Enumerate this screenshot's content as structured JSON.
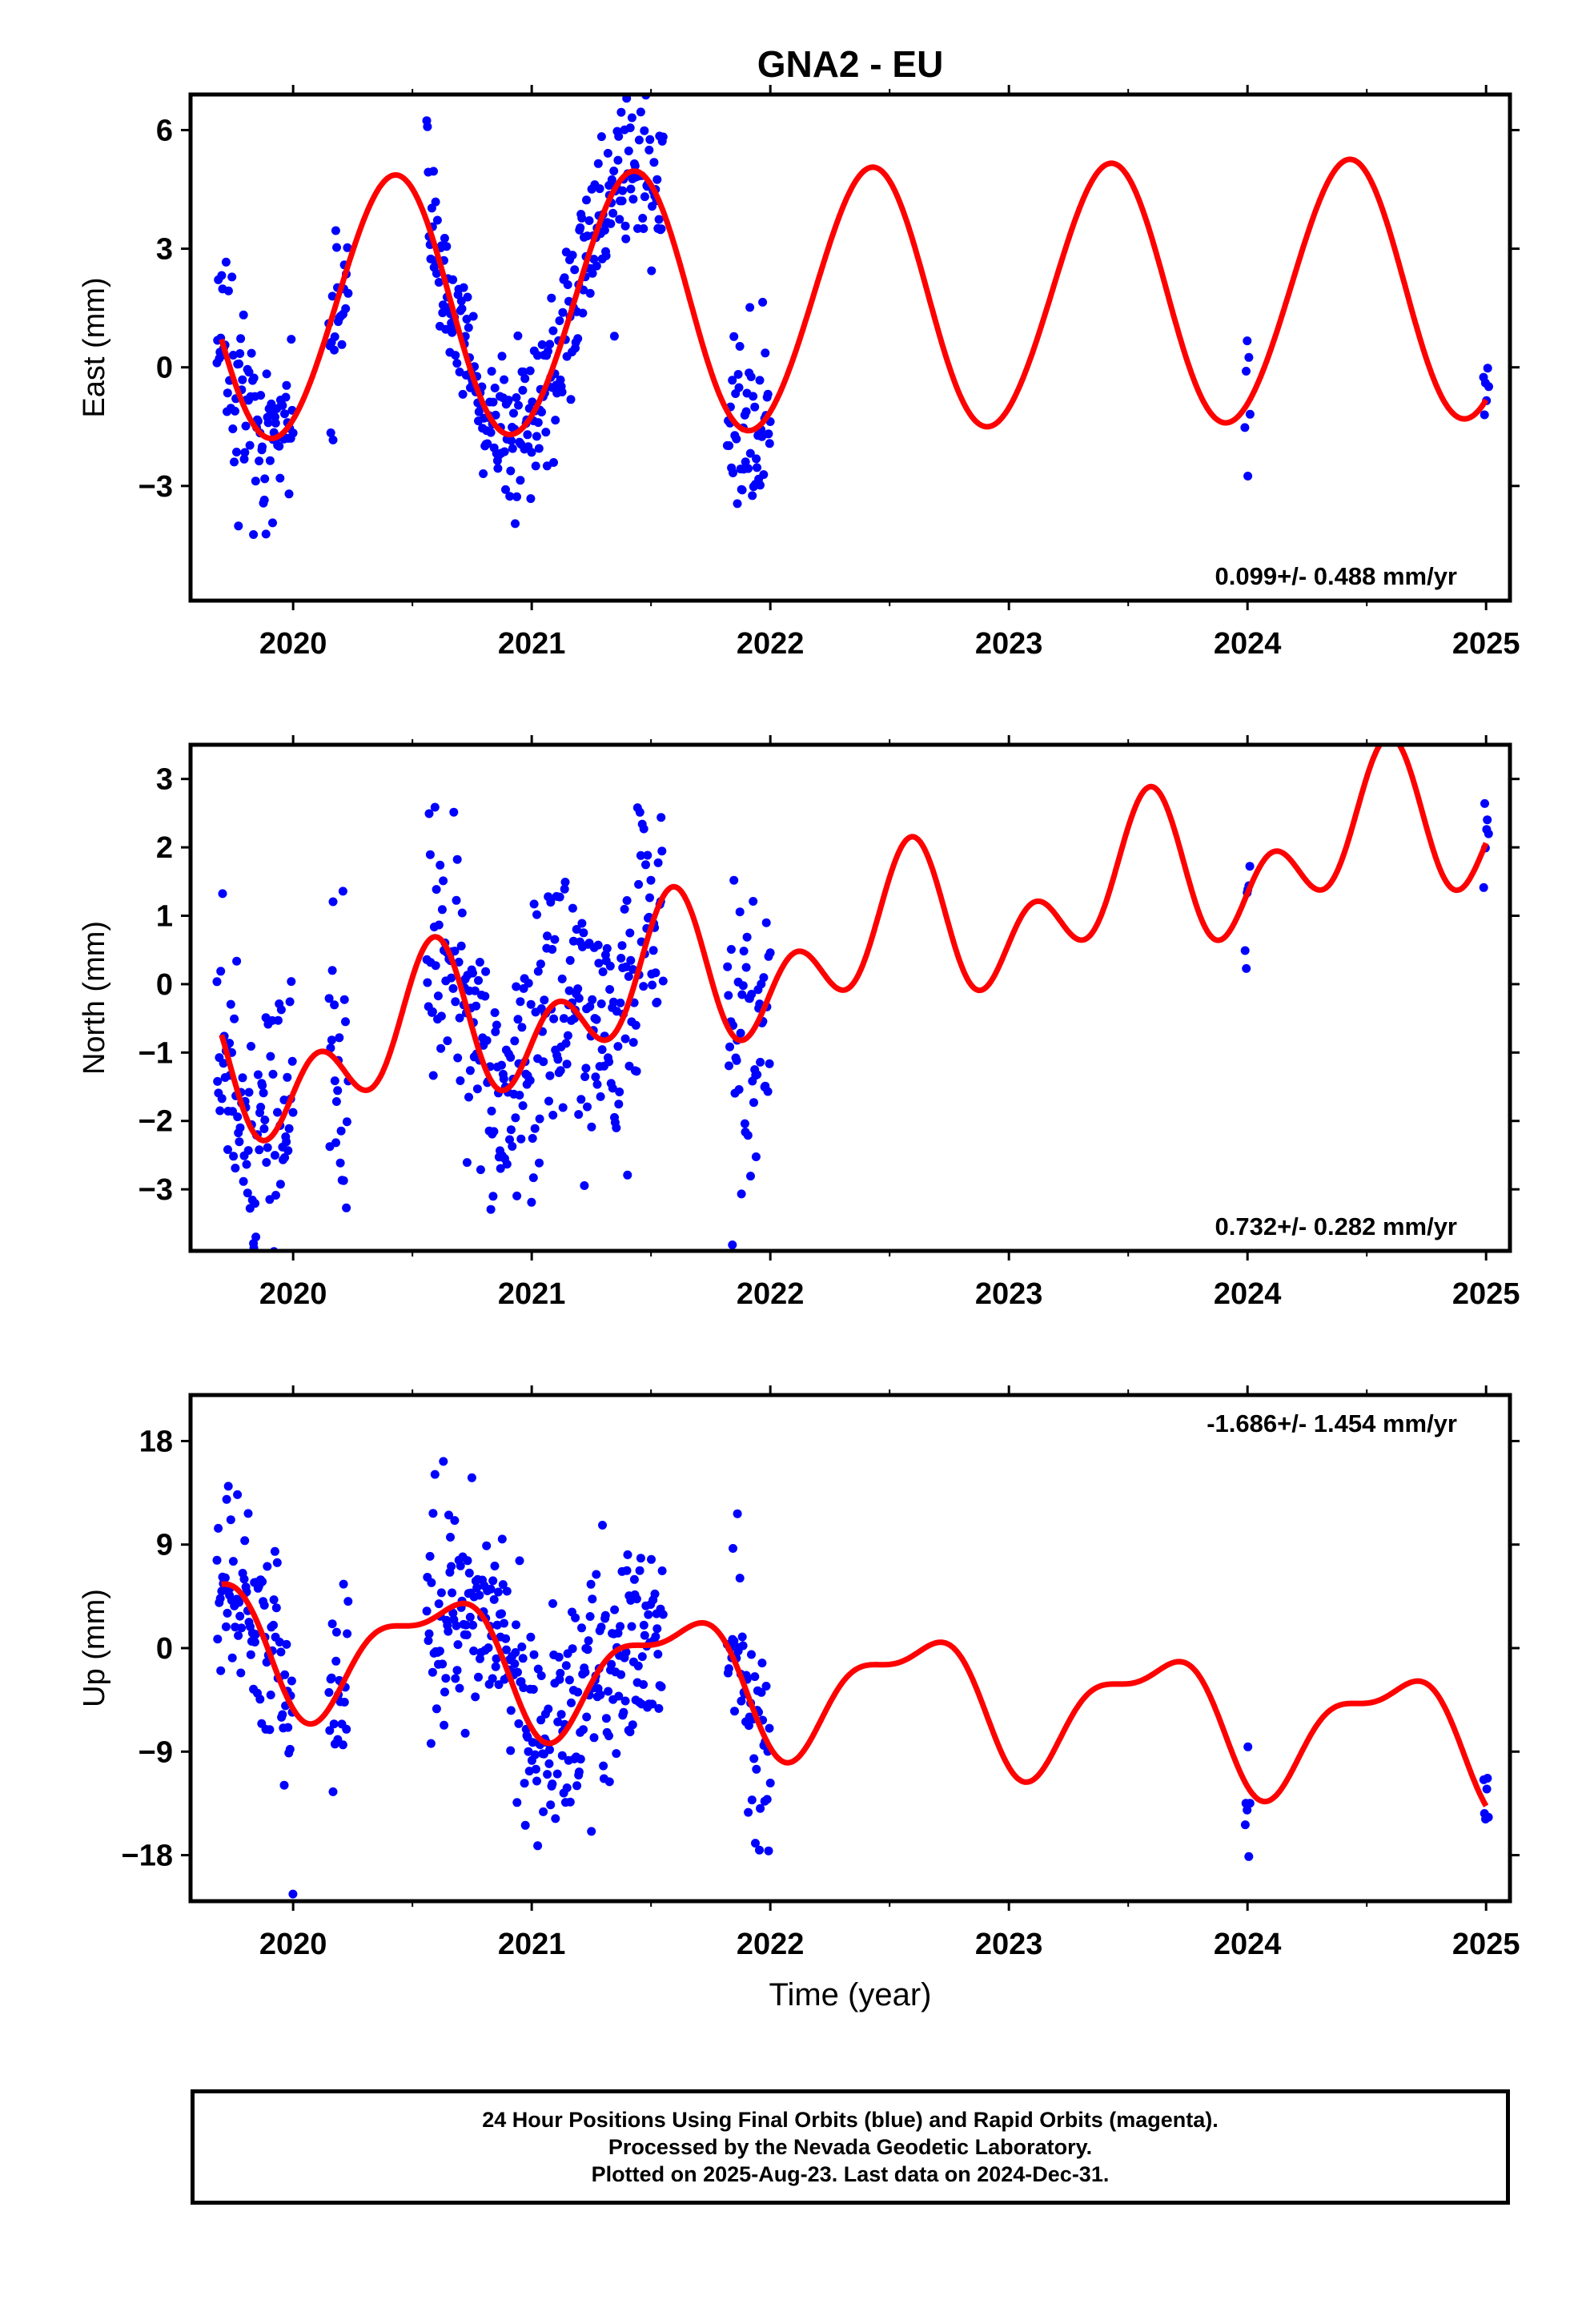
{
  "title": "GNA2 - EU",
  "colors": {
    "data_points": "#0000ff",
    "model_curve": "#ff0000",
    "axes": "#000000"
  },
  "chart_data": [
    {
      "type": "scatter",
      "panel": "east",
      "ylabel": "East (mm)",
      "xlabel": "",
      "xlim": [
        2019.57,
        2025.1
      ],
      "ylim": [
        -5.9,
        6.9
      ],
      "xticks": [
        2020,
        2021,
        2022,
        2023,
        2024,
        2025
      ],
      "yticks": [
        -3,
        0,
        3,
        6
      ],
      "ytick_labels": [
        "−3",
        "0",
        "3",
        "6"
      ],
      "rate_label": "0.099+/- 0.488 mm/yr",
      "rate_position": "bottom-right",
      "model": {
        "mean": 1.65,
        "amp1": 3.3,
        "peak": 0.42,
        "amp2": 0.12,
        "phase2": 0.0,
        "trend": 0.099,
        "t0": 2022.0
      },
      "segments": [
        {
          "start": 2019.68,
          "end": 2020.0,
          "scatter": 1.1
        },
        {
          "start": 2020.15,
          "end": 2020.23,
          "scatter": 1.0
        },
        {
          "start": 2020.56,
          "end": 2021.55,
          "scatter": 1.0
        },
        {
          "start": 2021.82,
          "end": 2022.0,
          "scatter": 1.2
        },
        {
          "start": 2023.99,
          "end": 2024.01,
          "scatter": 1.2
        },
        {
          "start": 2024.99,
          "end": 2025.01,
          "scatter": 0.5
        }
      ]
    },
    {
      "type": "scatter",
      "panel": "north",
      "ylabel": "North (mm)",
      "xlabel": "",
      "xlim": [
        2019.57,
        2025.1
      ],
      "ylim": [
        -3.9,
        3.5
      ],
      "xticks": [
        2020,
        2021,
        2022,
        2023,
        2024,
        2025
      ],
      "yticks": [
        -3,
        -2,
        -1,
        0,
        1,
        2,
        3
      ],
      "ytick_labels": [
        "−3",
        "−2",
        "−1",
        "0",
        "1",
        "2",
        "3"
      ],
      "rate_label": "0.732+/- 0.282 mm/yr",
      "rate_position": "bottom-right",
      "model": {
        "mean": 0.3,
        "amp1": 0.7,
        "peak": 0.55,
        "amp2": 0.75,
        "phase2": 0.1,
        "trend": 0.732,
        "t0": 2022.0
      },
      "segments": [
        {
          "start": 2019.68,
          "end": 2020.0,
          "scatter": 0.9
        },
        {
          "start": 2020.15,
          "end": 2020.23,
          "scatter": 1.0
        },
        {
          "start": 2020.56,
          "end": 2021.55,
          "scatter": 1.0
        },
        {
          "start": 2021.82,
          "end": 2022.0,
          "scatter": 1.0
        },
        {
          "start": 2023.99,
          "end": 2024.01,
          "scatter": 1.0
        },
        {
          "start": 2024.99,
          "end": 2025.01,
          "scatter": 0.4
        }
      ]
    },
    {
      "type": "scatter",
      "panel": "up",
      "ylabel": "Up (mm)",
      "xlabel": "Time (year)",
      "xlim": [
        2019.57,
        2025.1
      ],
      "ylim": [
        -22.0,
        22.0
      ],
      "xticks": [
        2020,
        2021,
        2022,
        2023,
        2024,
        2025
      ],
      "yticks": [
        -18,
        -9,
        0,
        9,
        18
      ],
      "ytick_labels": [
        "−18",
        "−9",
        "0",
        "9",
        "18"
      ],
      "rate_label": "-1.686+/- 1.454 mm/yr",
      "rate_position": "top-right",
      "model": {
        "mean": -3.0,
        "amp1": 5.0,
        "peak": 0.6,
        "amp2": 2.0,
        "phase2": 0.3,
        "trend": -1.686,
        "t0": 2022.0
      },
      "segments": [
        {
          "start": 2019.68,
          "end": 2020.0,
          "scatter": 4.5
        },
        {
          "start": 2020.15,
          "end": 2020.23,
          "scatter": 4.0
        },
        {
          "start": 2020.56,
          "end": 2021.55,
          "scatter": 5.0
        },
        {
          "start": 2021.82,
          "end": 2022.0,
          "scatter": 4.5
        },
        {
          "start": 2023.99,
          "end": 2024.01,
          "scatter": 3.5
        },
        {
          "start": 2024.99,
          "end": 2025.01,
          "scatter": 1.5
        }
      ]
    }
  ],
  "caption": {
    "line1": "24 Hour Positions Using Final Orbits (blue) and Rapid Orbits (magenta).",
    "line2": "Processed by the Nevada Geodetic Laboratory.",
    "line3": "Plotted on 2025-Aug-23. Last data on 2024-Dec-31."
  }
}
